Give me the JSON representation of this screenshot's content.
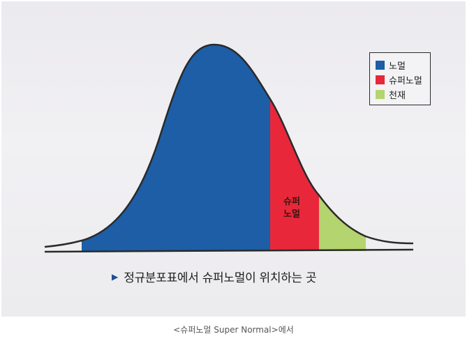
{
  "colors": {
    "normal": "#1d5ea6",
    "super_normal": "#e8283a",
    "genius": "#b3d46f",
    "outline": "#2a2a2a"
  },
  "legend": {
    "items": [
      {
        "label": "노멀",
        "color": "#1d5ea6"
      },
      {
        "label": "슈퍼노멀",
        "color": "#e8283a"
      },
      {
        "label": "천재",
        "color": "#b3d46f"
      }
    ]
  },
  "region_label": "슈퍼\n노멀",
  "caption": {
    "arrow_icon": "triangle-right-icon",
    "text": "정규분포표에서 슈퍼노멀이 위치하는 곳"
  },
  "source": "<슈퍼노멀 Super Normal>에서"
}
